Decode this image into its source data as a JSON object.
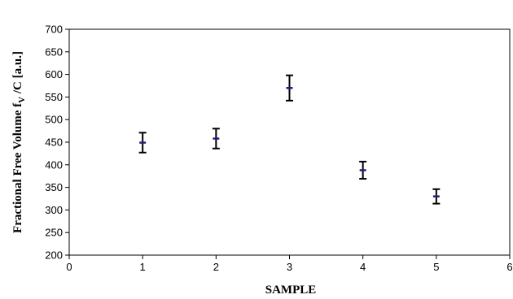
{
  "chart_data": {
    "type": "scatter",
    "title": "",
    "xlabel": "SAMPLE",
    "ylabel": {
      "main": "Fractional Free Volume f",
      "subscript": "V",
      "suffix": " /C [a.u.]"
    },
    "xlim": [
      0,
      6
    ],
    "ylim": [
      200,
      700
    ],
    "xticks": [
      0,
      1,
      2,
      3,
      4,
      5,
      6
    ],
    "yticks": [
      200,
      250,
      300,
      350,
      400,
      450,
      500,
      550,
      600,
      650,
      700
    ],
    "grid": false,
    "legend": "none",
    "marker_color": "#1f1f7a",
    "errorbar_color": "#000000",
    "points": [
      {
        "x": 1,
        "y": 449,
        "err": 22
      },
      {
        "x": 2,
        "y": 458,
        "err": 22
      },
      {
        "x": 3,
        "y": 570,
        "err": 28
      },
      {
        "x": 4,
        "y": 388,
        "err": 19
      },
      {
        "x": 5,
        "y": 330,
        "err": 16
      }
    ]
  }
}
